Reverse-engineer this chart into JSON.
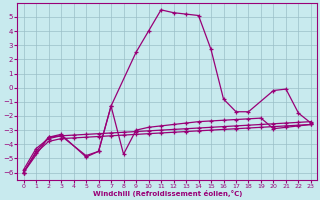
{
  "xlabel": "Windchill (Refroidissement éolien,°C)",
  "bg_color": "#c8eaee",
  "grid_color": "#9bbfc8",
  "line_color": "#990077",
  "xlim": [
    -0.5,
    23.5
  ],
  "ylim": [
    -6.5,
    6.0
  ],
  "xtick_vals": [
    0,
    1,
    2,
    3,
    4,
    5,
    6,
    7,
    8,
    9,
    10,
    11,
    12,
    13,
    14,
    15,
    16,
    17,
    18,
    19,
    20,
    21,
    22,
    23
  ],
  "ytick_vals": [
    -6,
    -5,
    -4,
    -3,
    -2,
    -1,
    0,
    1,
    2,
    3,
    4,
    5
  ],
  "curve_main_x": [
    0,
    1,
    2,
    3,
    5,
    6,
    7,
    9,
    10,
    11,
    12,
    13,
    14,
    15,
    16,
    17,
    18,
    20,
    21,
    22,
    23
  ],
  "curve_main_y": [
    -6.0,
    -4.5,
    -3.5,
    -3.4,
    -4.8,
    -4.5,
    -1.3,
    2.5,
    4.0,
    5.5,
    5.3,
    5.2,
    5.1,
    2.7,
    -0.8,
    -1.7,
    -1.7,
    -0.2,
    -0.1,
    -1.8,
    -2.5
  ],
  "curve_bump_x": [
    0,
    2,
    3,
    5,
    6,
    7,
    8,
    9,
    10,
    11,
    12,
    13,
    14,
    15,
    16,
    17,
    18,
    19,
    20,
    21,
    22,
    23
  ],
  "curve_bump_y": [
    -6.0,
    -3.5,
    -3.3,
    -4.9,
    -4.5,
    -1.3,
    -4.7,
    -3.0,
    -2.8,
    -2.7,
    -2.6,
    -2.5,
    -2.4,
    -2.35,
    -2.3,
    -2.25,
    -2.2,
    -2.15,
    -2.9,
    -2.8,
    -2.7,
    -2.6
  ],
  "curve_diag1_x": [
    0,
    1,
    2,
    3,
    4,
    5,
    6,
    7,
    8,
    9,
    10,
    11,
    12,
    13,
    14,
    15,
    16,
    17,
    18,
    19,
    20,
    21,
    22,
    23
  ],
  "curve_diag1_y": [
    -5.8,
    -4.3,
    -3.6,
    -3.4,
    -3.35,
    -3.3,
    -3.25,
    -3.2,
    -3.15,
    -3.1,
    -3.05,
    -3.0,
    -2.95,
    -2.9,
    -2.85,
    -2.8,
    -2.75,
    -2.7,
    -2.65,
    -2.6,
    -2.55,
    -2.5,
    -2.45,
    -2.4
  ],
  "curve_diag2_x": [
    0,
    1,
    2,
    3,
    4,
    5,
    6,
    7,
    8,
    9,
    10,
    11,
    12,
    13,
    14,
    15,
    16,
    17,
    18,
    19,
    20,
    21,
    22,
    23
  ],
  "curve_diag2_y": [
    -6.0,
    -4.6,
    -3.8,
    -3.6,
    -3.55,
    -3.5,
    -3.45,
    -3.4,
    -3.35,
    -3.3,
    -3.25,
    -3.2,
    -3.15,
    -3.1,
    -3.05,
    -3.0,
    -2.95,
    -2.9,
    -2.85,
    -2.8,
    -2.75,
    -2.7,
    -2.65,
    -2.6
  ]
}
